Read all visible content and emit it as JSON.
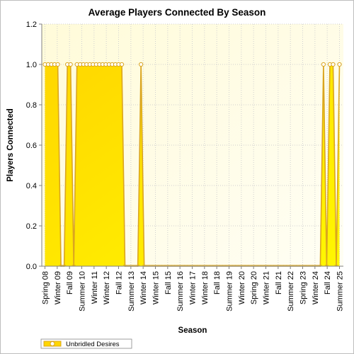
{
  "chart_data": {
    "type": "area",
    "title": "Average Players Connected By Season",
    "xlabel": "Season",
    "ylabel": "Players Connected",
    "ylim": [
      0,
      1.2
    ],
    "yticks": [
      "0.0",
      "0.2",
      "0.4",
      "0.6",
      "0.8",
      "1.0",
      "1.2"
    ],
    "x_tick_labels": [
      "Spring 08",
      "Winter 09",
      "Fall 09",
      "Summer 10",
      "Winter 11",
      "Winter 12",
      "Fall 12",
      "Summer 13",
      "Winter 14",
      "Winter 15",
      "Fall 15",
      "Summer 16",
      "Winter 17",
      "Winter 18",
      "Fall 18",
      "Summer 19",
      "Winter 20",
      "Spring 20",
      "Winter 21",
      "Fall 21",
      "Summer 22",
      "Spring 23",
      "Winter 24",
      "Fall 24",
      "Summer 25"
    ],
    "grid": true,
    "legend_position": "bottom-left",
    "series": [
      {
        "name": "Unbridled Desires",
        "color": "#FFD700",
        "line_color": "#DAA520",
        "values": [
          1,
          1,
          1,
          1,
          1,
          0,
          0,
          1,
          1,
          0,
          1,
          1,
          1,
          1,
          1,
          1,
          1,
          1,
          1,
          1,
          1,
          1,
          1,
          1,
          1,
          0,
          0,
          0,
          0,
          0,
          1,
          0,
          0,
          0,
          0,
          0,
          0,
          0,
          0,
          0,
          0,
          0,
          0,
          0,
          0,
          0,
          0,
          0,
          0,
          0,
          0,
          0,
          0,
          0,
          0,
          0,
          0,
          0,
          0,
          0,
          0,
          0,
          0,
          0,
          0,
          0,
          0,
          0,
          0,
          0,
          0,
          0,
          0,
          0,
          0,
          0,
          0,
          0,
          0,
          0,
          0,
          0,
          0,
          0,
          0,
          0,
          0,
          1,
          0,
          1,
          1,
          0,
          1
        ]
      }
    ]
  }
}
